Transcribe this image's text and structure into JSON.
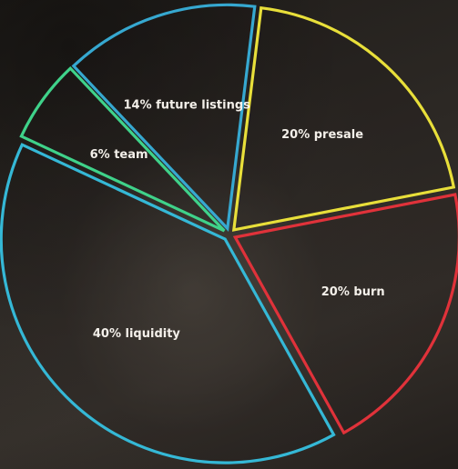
{
  "chart_data": {
    "type": "pie",
    "title": "",
    "slices": [
      {
        "label": "20% burn",
        "value": 20,
        "color": "#e0323a"
      },
      {
        "label": "40% liquidity",
        "value": 40,
        "color": "#35b8d6"
      },
      {
        "label": "6% team",
        "value": 6,
        "color": "#3fd28a"
      },
      {
        "label": "14% future listings",
        "value": 14,
        "color": "#36a8d0"
      },
      {
        "label": "20% presale",
        "value": 20,
        "color": "#e8df3a"
      }
    ]
  }
}
